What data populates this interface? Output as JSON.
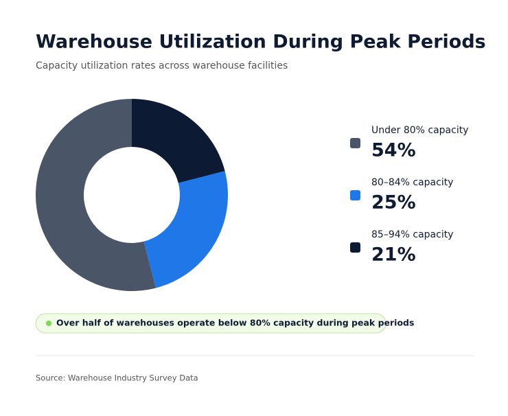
{
  "chart_data": {
    "type": "donut",
    "title": "Warehouse Utilization During Peak Periods",
    "subtitle": "Capacity utilization rates across warehouse facilities",
    "categories": [
      "Under 80% capacity",
      "80–84% capacity",
      "85–94% capacity"
    ],
    "values": [
      54,
      25,
      21
    ],
    "value_labels": [
      "54%",
      "25%",
      "21%"
    ],
    "colors": [
      "#4a5568",
      "#1f77e8",
      "#0c1a33"
    ],
    "annotation": "Over half of warehouses operate below 80% capacity during peak periods",
    "source": "Source: Warehouse Industry Survey Data"
  }
}
